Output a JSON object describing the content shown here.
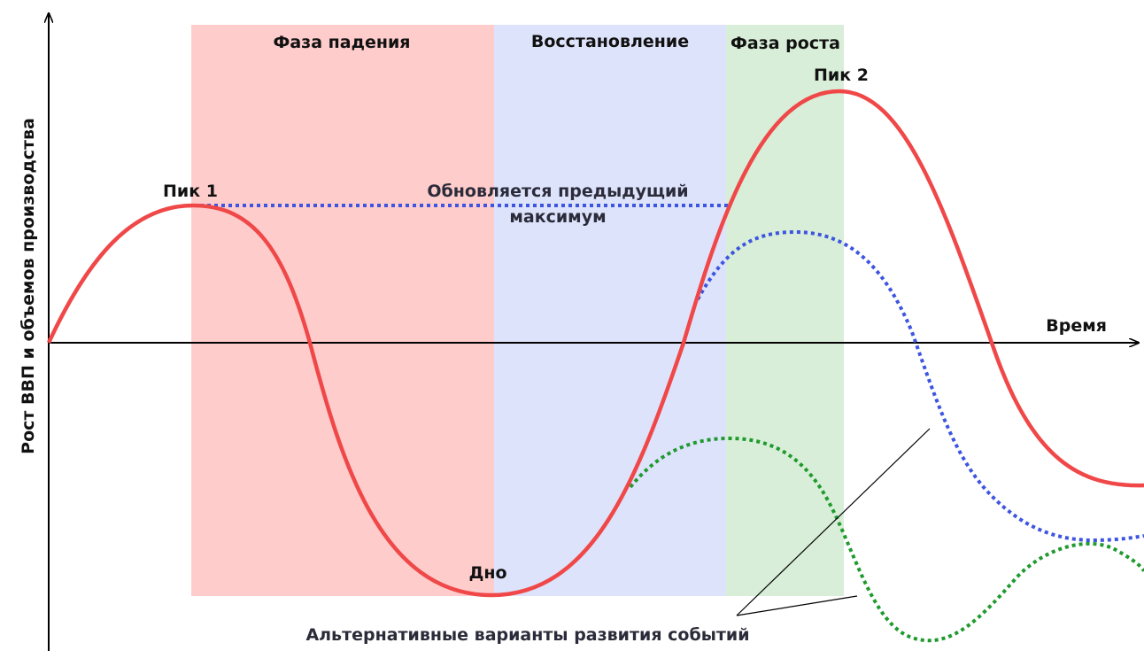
{
  "axes": {
    "y_label": "Рост ВВП и объемов производства",
    "x_label": "Время"
  },
  "phases": [
    {
      "label": "Фаза падения",
      "color": "#ffcccc"
    },
    {
      "label": "Восстановление",
      "color": "#dde3fb"
    },
    {
      "label": "Фаза роста",
      "color": "#d8eed8"
    }
  ],
  "points": {
    "peak1": "Пик 1",
    "bottom": "Дно",
    "peak2": "Пик 2"
  },
  "notes": {
    "previous_max_line1": "Обновляется предыдущий",
    "previous_max_line2": "максимум",
    "alternatives": "Альтернативные варианты развития событий"
  },
  "colors": {
    "main_curve": "#f04848",
    "blue_alt": "#3d55e0",
    "green_alt": "#1f9a2e",
    "axis": "#000000"
  }
}
